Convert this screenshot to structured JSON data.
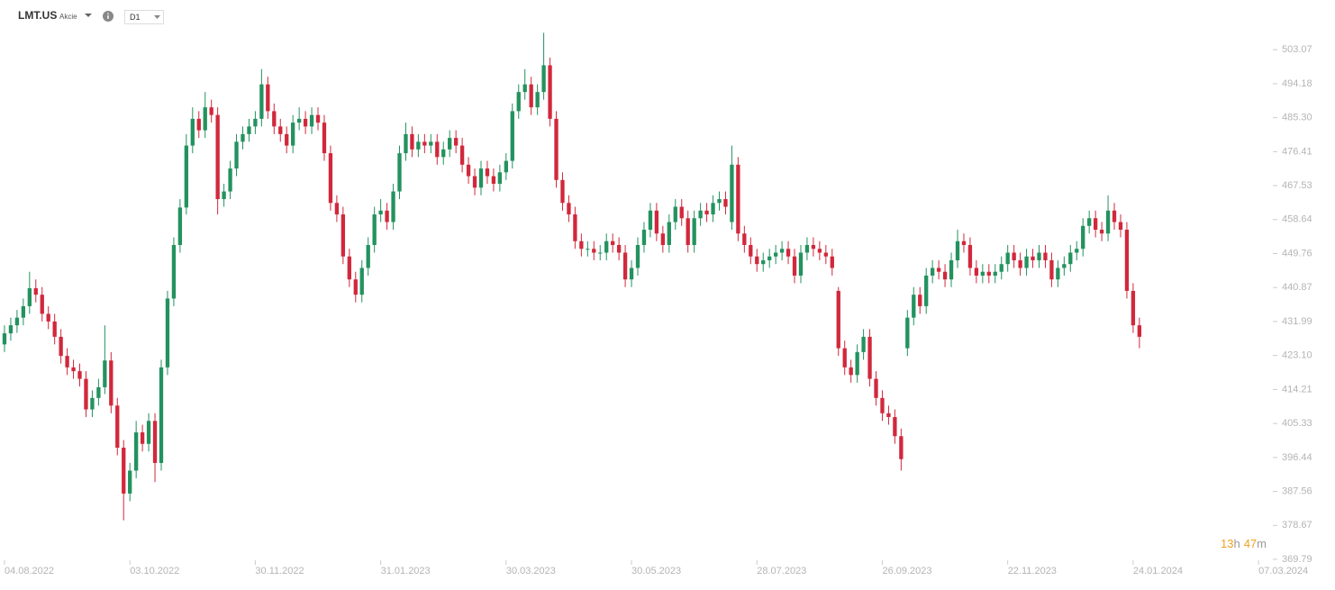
{
  "chart_data": {
    "type": "candlestick",
    "symbol": "LMT.US",
    "market": "Akcie",
    "timeframe": "D1",
    "countdown": {
      "hours": "13",
      "hours_unit": "h",
      "minutes": "47",
      "minutes_unit": "m"
    },
    "up_color": "#23925f",
    "down_color": "#d1283c",
    "open": [
      426,
      428.9,
      431,
      433,
      436,
      440.7,
      439,
      434,
      432,
      428,
      423,
      420,
      419,
      417,
      409,
      412,
      414.8,
      421.8,
      410,
      399,
      387,
      393,
      403,
      400,
      406,
      395,
      420,
      438,
      452,
      461.8,
      478,
      485,
      482,
      488,
      486,
      464,
      466,
      472,
      479,
      481,
      483,
      485,
      494,
      487,
      483,
      481,
      478,
      484,
      485,
      483,
      486,
      484,
      476,
      463,
      460,
      449,
      443,
      439,
      446,
      452,
      460,
      461,
      458,
      466,
      476,
      481,
      477,
      479,
      478,
      479,
      475,
      477,
      480,
      478,
      473,
      470,
      467,
      472,
      470,
      468,
      471,
      474,
      487,
      492,
      494,
      488,
      492,
      499,
      485,
      469,
      463,
      460,
      453,
      451,
      451,
      450,
      450,
      453,
      452,
      450,
      443,
      446,
      452,
      456,
      461,
      455,
      452,
      458,
      462,
      459,
      452,
      459,
      461,
      460,
      463,
      464,
      458,
      473,
      455,
      452,
      449,
      447,
      448,
      449,
      450,
      451,
      449,
      444,
      450,
      452,
      451,
      450,
      449,
      440,
      425,
      420,
      418,
      424,
      428,
      417,
      412,
      408,
      407,
      402,
      425,
      433,
      439,
      436,
      444,
      446,
      445,
      443,
      448,
      453,
      452,
      446,
      444,
      445,
      444,
      445,
      447,
      450,
      448,
      446,
      449,
      448,
      450,
      448,
      443,
      446,
      447,
      450,
      451,
      457,
      459,
      456,
      455,
      461,
      458,
      456,
      440,
      431
    ],
    "high": [
      431,
      433,
      435,
      438,
      445,
      443,
      441,
      436,
      434,
      430,
      425,
      422,
      421,
      419,
      414,
      417,
      431,
      424,
      412,
      401,
      395,
      406,
      405,
      408,
      408,
      422,
      440,
      454,
      464,
      481,
      488,
      487,
      492,
      490,
      488,
      468,
      474,
      481,
      483,
      485,
      487,
      498,
      496,
      489,
      485,
      483,
      486,
      488,
      487,
      488,
      488,
      486,
      478,
      465,
      462,
      451,
      445,
      448,
      454,
      462,
      464,
      463,
      468,
      478,
      484,
      483,
      481,
      481,
      481,
      481,
      479,
      482,
      482,
      480,
      475,
      472,
      474,
      474,
      472,
      473,
      476,
      489,
      494,
      498,
      496,
      494,
      507.5,
      501,
      487,
      471,
      465,
      462,
      455,
      453,
      453,
      452,
      455,
      455,
      454,
      452,
      448,
      454,
      458,
      463,
      463,
      457,
      460,
      464,
      464,
      461,
      461,
      463,
      463,
      465,
      466,
      466,
      478,
      475,
      457,
      454,
      451,
      450,
      451,
      452,
      453,
      453,
      451,
      452,
      454,
      454,
      453,
      452,
      451,
      441,
      427,
      422,
      426,
      430,
      430,
      419,
      414,
      410,
      409,
      404,
      435,
      441,
      441,
      446,
      448,
      448,
      447,
      450,
      456,
      455,
      454,
      448,
      447,
      447,
      447,
      449,
      452,
      452,
      450,
      451,
      451,
      452,
      452,
      450,
      448,
      449,
      452,
      453,
      459,
      461,
      461,
      458,
      465,
      463,
      460,
      458,
      442,
      433
    ],
    "low": [
      424,
      427,
      429,
      431,
      434,
      437,
      432,
      430,
      426,
      421,
      418,
      417,
      415,
      407,
      407,
      410,
      413,
      408,
      397,
      380,
      385,
      391,
      398,
      398,
      390,
      393,
      418,
      436,
      450,
      460,
      476,
      480,
      480,
      484,
      460,
      462,
      464,
      470,
      477,
      479,
      481,
      483,
      485,
      481,
      479,
      476,
      476,
      482,
      481,
      481,
      482,
      474,
      461,
      458,
      447,
      441,
      437,
      437,
      444,
      450,
      458,
      456,
      456,
      464,
      474,
      475,
      475,
      476,
      476,
      473,
      473,
      475,
      476,
      471,
      468,
      465,
      465,
      468,
      466,
      466,
      469,
      472,
      485,
      490,
      486,
      486,
      490,
      483,
      467,
      461,
      458,
      451,
      449,
      449,
      448,
      448,
      448,
      450,
      448,
      441,
      441,
      444,
      450,
      454,
      453,
      450,
      450,
      456,
      457,
      450,
      450,
      457,
      458,
      458,
      461,
      460,
      456,
      453,
      450,
      447,
      445,
      445,
      446,
      447,
      448,
      447,
      442,
      442,
      448,
      449,
      448,
      447,
      444,
      423,
      418,
      416,
      416,
      422,
      415,
      410,
      406,
      405,
      400,
      393,
      423,
      431,
      434,
      434,
      442,
      443,
      441,
      441,
      446,
      450,
      444,
      442,
      442,
      442,
      442,
      443,
      445,
      446,
      444,
      444,
      446,
      446,
      446,
      441,
      441,
      444,
      445,
      448,
      449,
      455,
      454,
      453,
      453,
      456,
      454,
      438,
      429,
      425
    ],
    "close": [
      428.9,
      431,
      433,
      436,
      440.7,
      439,
      434,
      432,
      428,
      423,
      420,
      419,
      417,
      409,
      412,
      414.8,
      421.8,
      410,
      399,
      387,
      393,
      403,
      400,
      406,
      395,
      420,
      438,
      452,
      461.8,
      478,
      485,
      482,
      488,
      486,
      464,
      466,
      472,
      479,
      481,
      483,
      485,
      494,
      487,
      483,
      481,
      478,
      484,
      485,
      483,
      486,
      484,
      476,
      463,
      460,
      449,
      443,
      439,
      446,
      452,
      460,
      461,
      458,
      466,
      476,
      481,
      477,
      479,
      478,
      479,
      475,
      477,
      480,
      478,
      473,
      470,
      467,
      472,
      470,
      468,
      471,
      474,
      487,
      492,
      494,
      488,
      492,
      499,
      485,
      469,
      463,
      460,
      453,
      451,
      451,
      450,
      450,
      453,
      452,
      450,
      443,
      446,
      452,
      456,
      461,
      455,
      452,
      458,
      462,
      459,
      452,
      459,
      461,
      460,
      463,
      464,
      462,
      473,
      455,
      452,
      449,
      447,
      448,
      449,
      450,
      451,
      449,
      444,
      450,
      452,
      451,
      450,
      449,
      446,
      425,
      420,
      418,
      424,
      428,
      417,
      412,
      408,
      407,
      402,
      396,
      433,
      439,
      436,
      444,
      446,
      445,
      443,
      448,
      453,
      452,
      446,
      444,
      445,
      444,
      445,
      447,
      450,
      448,
      446,
      449,
      448,
      450,
      448,
      443,
      446,
      447,
      450,
      451,
      457,
      459,
      456,
      455,
      461,
      458,
      456,
      440,
      431,
      428
    ],
    "xlim": [
      -0.5,
      203
    ],
    "xticks": [
      {
        "value": 0,
        "label": "04.08.2022"
      },
      {
        "value": 20,
        "label": "03.10.2022"
      },
      {
        "value": 40,
        "label": "30.11.2022"
      },
      {
        "value": 60,
        "label": "31.01.2023"
      },
      {
        "value": 80,
        "label": "30.03.2023"
      },
      {
        "value": 100,
        "label": "30.05.2023"
      },
      {
        "value": 120,
        "label": "28.07.2023"
      },
      {
        "value": 140,
        "label": "26.09.2023"
      },
      {
        "value": 160,
        "label": "22.11.2023"
      },
      {
        "value": 180,
        "label": "24.01.2024"
      },
      {
        "value": 200,
        "label": "07.03.2024"
      }
    ],
    "ylim": [
      369.79,
      509
    ],
    "yticks": [
      369.79,
      378.67,
      387.56,
      396.44,
      405.33,
      414.21,
      423.1,
      431.99,
      440.87,
      449.76,
      458.64,
      467.53,
      476.41,
      485.3,
      494.18,
      503.07
    ],
    "ytick_labels": [
      "369.79",
      "378.67",
      "387.56",
      "396.44",
      "405.33",
      "414.21",
      "423.10",
      "431.99",
      "440.87",
      "449.76",
      "458.64",
      "467.53",
      "476.41",
      "485.30",
      "494.18",
      "503.07"
    ]
  }
}
